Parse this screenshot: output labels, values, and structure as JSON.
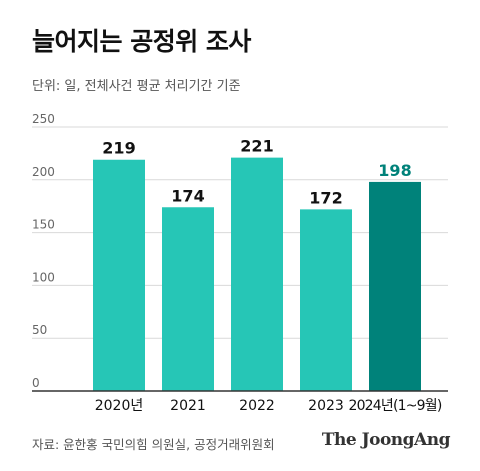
{
  "title": "늘어지는 공정위 조사",
  "subtitle": "단위: 일, 전체사건 평균 처리기간 기준",
  "source": "자료: 윤한홍 국민의힘 의원실, 공정거래위원회",
  "brand": "The JoongAng",
  "colors": {
    "bar": "#26c6b6",
    "highlight": "#00827a",
    "highlight_label": "#00827a",
    "grid": "#d9d9d9",
    "axis": "#333333",
    "tick_text": "#666666",
    "label_text": "#111111"
  },
  "chart_data": {
    "type": "bar",
    "title": "늘어지는 공정위 조사",
    "subtitle": "단위: 일, 전체사건 평균 처리기간 기준",
    "categories": [
      "2020년",
      "2021",
      "2022",
      "2023",
      "2024년(1~9월)"
    ],
    "values": [
      219,
      174,
      221,
      172,
      198
    ],
    "data_labels": [
      "219",
      "174",
      "221",
      "172",
      "198"
    ],
    "highlight_index": 4,
    "ylim": [
      0,
      250
    ],
    "yticks": [
      0,
      50,
      100,
      150,
      200,
      250
    ],
    "ytick_labels": [
      "0",
      "50",
      "100",
      "150",
      "200",
      "250"
    ],
    "grid": true,
    "xlabel": "",
    "ylabel": ""
  }
}
